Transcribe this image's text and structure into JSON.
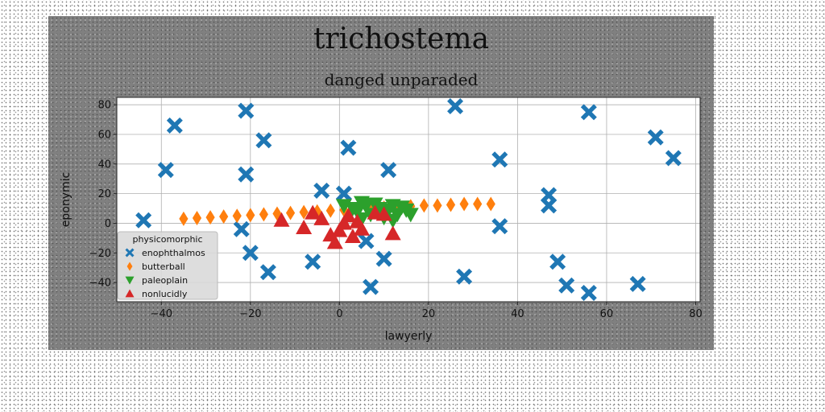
{
  "chart_data": {
    "type": "scatter",
    "title": "trichostema",
    "subtitle": "danged unparaded",
    "xlabel": "lawyerly",
    "ylabel": "eponymic",
    "xlim": [
      -50,
      81
    ],
    "ylim": [
      -53,
      85
    ],
    "xticks": [
      -40,
      -20,
      0,
      20,
      40,
      60,
      80
    ],
    "yticks": [
      -40,
      -20,
      0,
      20,
      40,
      60,
      80
    ],
    "grid": true,
    "legend": {
      "title": "physicomorphic",
      "placement": "lower-left"
    },
    "series": [
      {
        "name": "enophthalmos",
        "marker": "x",
        "color": "#1f77b4",
        "points": [
          [
            -44,
            2
          ],
          [
            -39,
            36
          ],
          [
            -37,
            66
          ],
          [
            -21,
            76
          ],
          [
            -21,
            33
          ],
          [
            -17,
            56
          ],
          [
            -22,
            -4
          ],
          [
            -20,
            -20
          ],
          [
            -16,
            -33
          ],
          [
            -6,
            -26
          ],
          [
            -4,
            22
          ],
          [
            1,
            20
          ],
          [
            2,
            51
          ],
          [
            6,
            -12
          ],
          [
            7,
            -43
          ],
          [
            11,
            36
          ],
          [
            10,
            -24
          ],
          [
            26,
            79
          ],
          [
            28,
            -36
          ],
          [
            36,
            43
          ],
          [
            36,
            -2
          ],
          [
            47,
            19
          ],
          [
            47,
            12
          ],
          [
            49,
            -26
          ],
          [
            51,
            -42
          ],
          [
            56,
            -47
          ],
          [
            56,
            75
          ],
          [
            67,
            -41
          ],
          [
            71,
            58
          ],
          [
            75,
            44
          ]
        ]
      },
      {
        "name": "butterball",
        "marker": "diamond",
        "color": "#ff7f0e",
        "points": [
          [
            -35,
            3
          ],
          [
            -32,
            3.5
          ],
          [
            -29,
            4
          ],
          [
            -26,
            4.5
          ],
          [
            -23,
            5
          ],
          [
            -20,
            5.5
          ],
          [
            -17,
            6
          ],
          [
            -14,
            6.5
          ],
          [
            -11,
            7
          ],
          [
            -8,
            7.5
          ],
          [
            -5,
            8
          ],
          [
            -2,
            8.5
          ],
          [
            1,
            9
          ],
          [
            4,
            9.5
          ],
          [
            7,
            10
          ],
          [
            10,
            10.5
          ],
          [
            13,
            11
          ],
          [
            16,
            11.5
          ],
          [
            19,
            12
          ],
          [
            22,
            12
          ],
          [
            25,
            12.5
          ],
          [
            28,
            13
          ],
          [
            31,
            13
          ],
          [
            34,
            13
          ]
        ]
      },
      {
        "name": "paleoplain",
        "marker": "triangle-down",
        "color": "#2ca02c",
        "points": [
          [
            1,
            12
          ],
          [
            3,
            10
          ],
          [
            4,
            8
          ],
          [
            5,
            14
          ],
          [
            6,
            12
          ],
          [
            7,
            6
          ],
          [
            8,
            13
          ],
          [
            9,
            10
          ],
          [
            10,
            4
          ],
          [
            11,
            9
          ],
          [
            12,
            12
          ],
          [
            13,
            6
          ],
          [
            14,
            11
          ],
          [
            15,
            9
          ],
          [
            16,
            6
          ],
          [
            12,
            2
          ],
          [
            5,
            3
          ]
        ]
      },
      {
        "name": "nonlucidly",
        "marker": "triangle-up",
        "color": "#d62728",
        "points": [
          [
            -13,
            2
          ],
          [
            -8,
            -3
          ],
          [
            -6,
            7
          ],
          [
            -4,
            3
          ],
          [
            -2,
            -8
          ],
          [
            -1,
            -13
          ],
          [
            0,
            -5
          ],
          [
            1,
            0
          ],
          [
            2,
            5
          ],
          [
            3,
            -9
          ],
          [
            4,
            1
          ],
          [
            5,
            -4
          ],
          [
            8,
            7
          ],
          [
            10,
            6
          ],
          [
            12,
            -7
          ]
        ]
      }
    ]
  }
}
